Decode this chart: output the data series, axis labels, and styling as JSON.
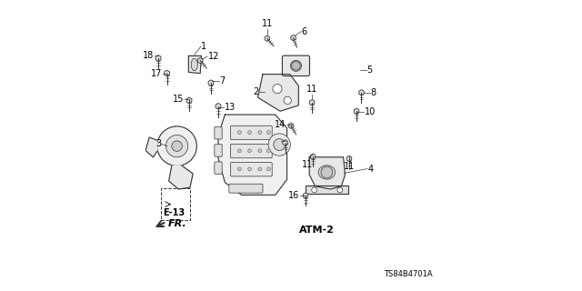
{
  "bg_color": "#ffffff",
  "line_color": "#333333",
  "text_color": "#000000",
  "label_fontsize": 7,
  "diagram_id": "TS84B4701A",
  "atm2_label": "ATM-2",
  "e13_label": "E-13",
  "fr_label": "FR."
}
